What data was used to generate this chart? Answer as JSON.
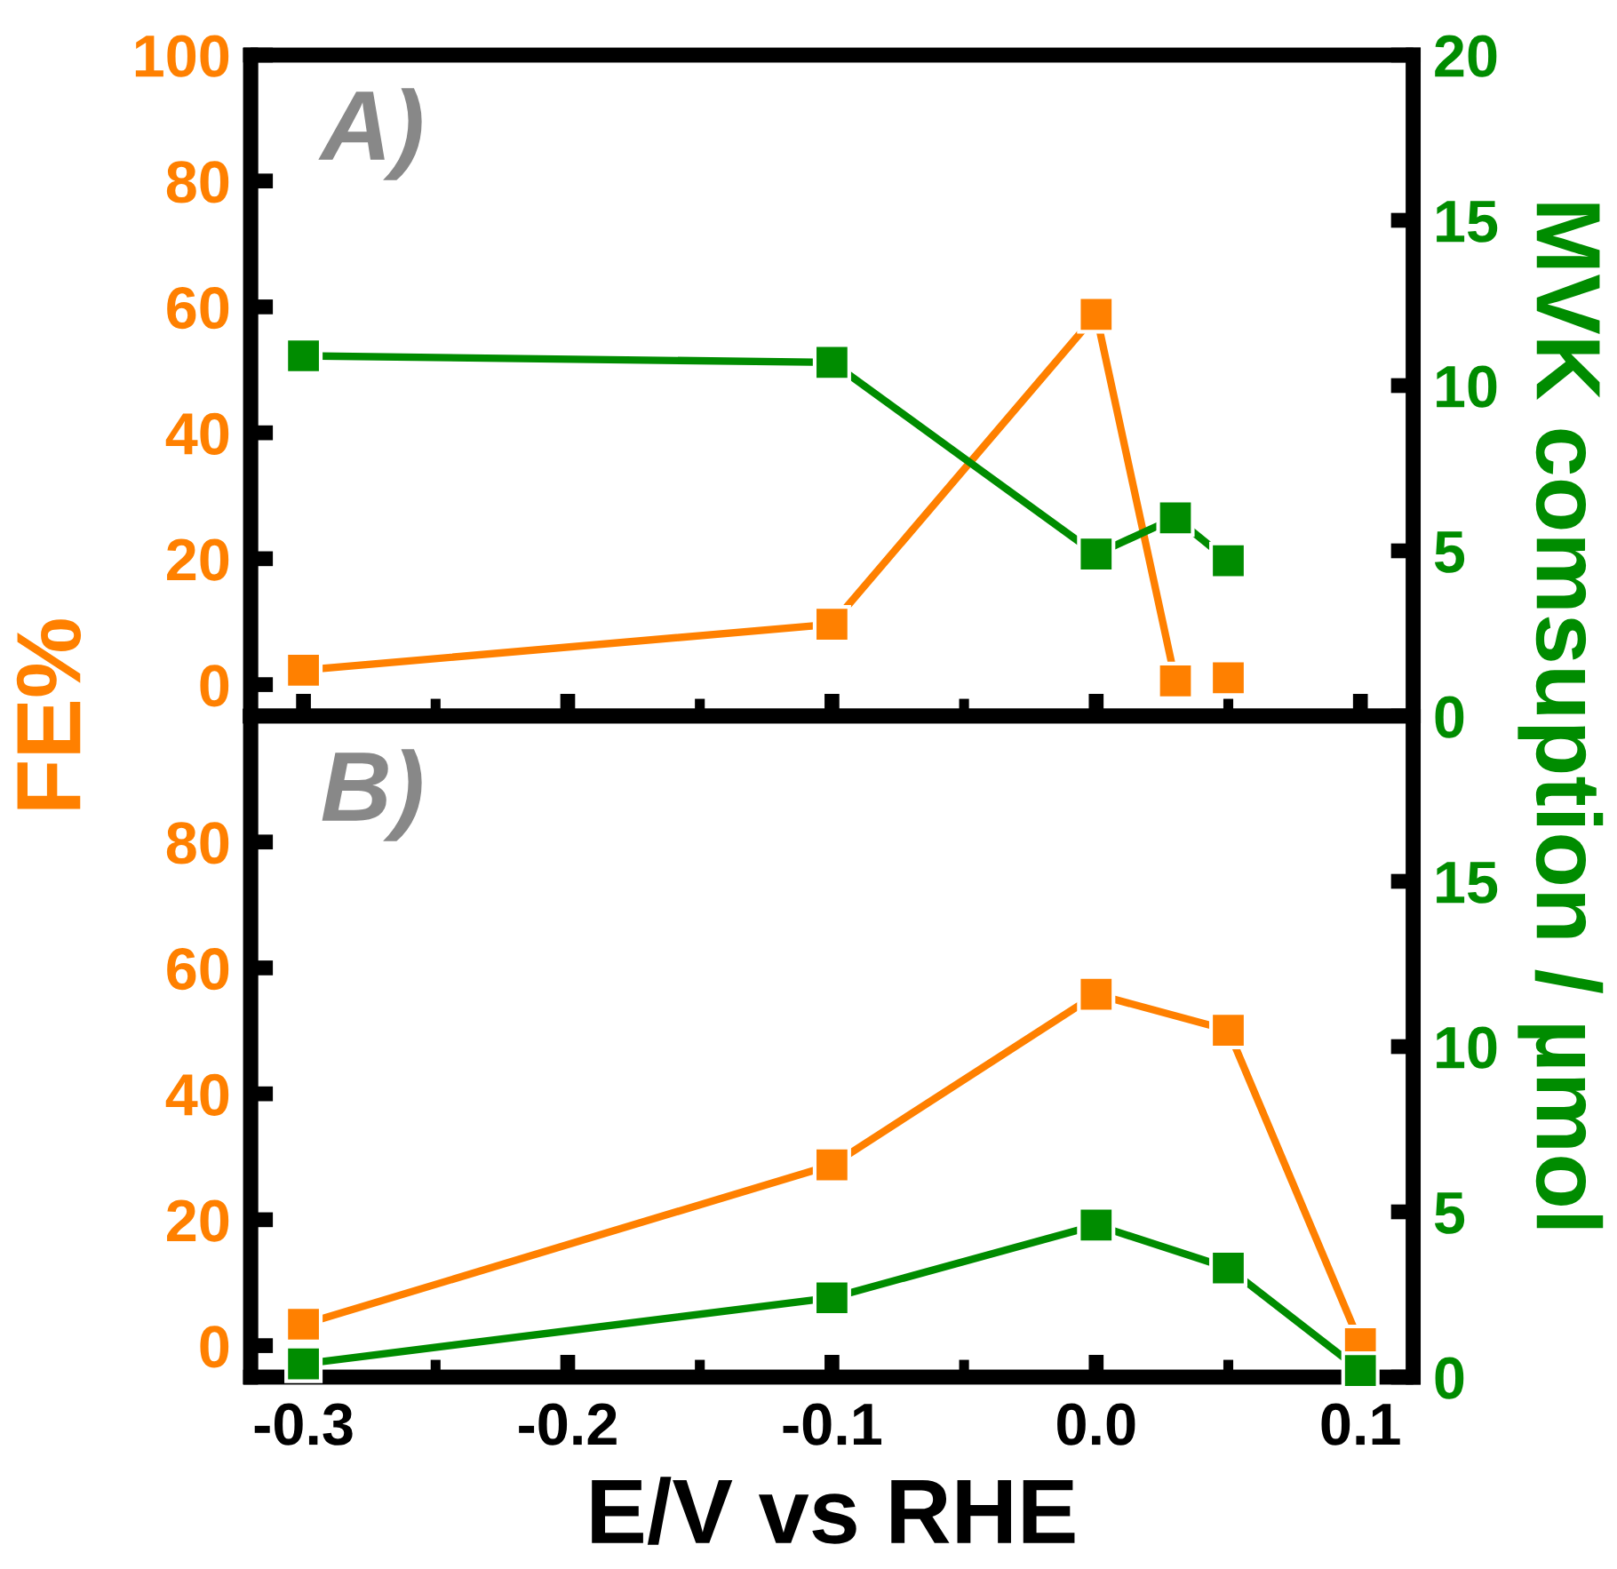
{
  "chart_data": [
    {
      "type": "line",
      "marker": "square",
      "annotations": [
        "A)"
      ],
      "ylabel": "FE%",
      "y2label": "MVK comsuption / µmol",
      "tick_labels": "y",
      "xlim": [
        -0.32,
        0.12
      ],
      "xticks": [
        {
          "value": -0.3,
          "label": null
        },
        {
          "value": -0.25,
          "label": null
        },
        {
          "value": -0.2,
          "label": null
        },
        {
          "value": -0.15,
          "label": null
        },
        {
          "value": -0.1,
          "label": null
        },
        {
          "value": -0.05,
          "label": null
        },
        {
          "value": 0,
          "label": null
        },
        {
          "value": 0.05,
          "label": null
        },
        {
          "value": 0.1,
          "label": null
        }
      ],
      "ylim": [
        -5,
        100
      ],
      "yticks": [
        0,
        20,
        40,
        60,
        80,
        100
      ],
      "y2lim": [
        0,
        20
      ],
      "y2ticks": [
        0,
        5,
        10,
        15,
        20
      ],
      "series": [
        {
          "color": "#ff8000",
          "x": [
            -0.3,
            -0.1,
            0,
            0.03
          ],
          "values": [
            2.3,
            9.6,
            58.8,
            0.6
          ]
        },
        {
          "type": "scatter",
          "color": "#ff8000",
          "x": [
            0.05
          ],
          "values": [
            1.1
          ]
        },
        {
          "color": "#008c00",
          "axis": "y2",
          "x": [
            -0.3,
            -0.1,
            0,
            0.03,
            0.05
          ],
          "values": [
            10.9,
            10.7,
            4.9,
            6.0,
            4.7
          ]
        }
      ]
    },
    {
      "type": "line",
      "marker": "square",
      "annotations": [
        "B)"
      ],
      "xlabel": "E/V vs RHE",
      "xlim": [
        -0.32,
        0.12
      ],
      "xticks": [
        -0.3,
        {
          "value": -0.25,
          "label": null
        },
        -0.2,
        {
          "value": -0.15,
          "label": null
        },
        -0.1,
        {
          "value": -0.05,
          "label": null
        },
        {
          "value": 0,
          "label": "0.0"
        },
        {
          "value": 0.05,
          "label": null
        },
        0.1
      ],
      "ylim": [
        -5,
        100
      ],
      "yticks": [
        0,
        20,
        40,
        60,
        80
      ],
      "y2lim": [
        0,
        20
      ],
      "y2ticks": [
        0,
        5,
        10,
        15
      ],
      "series": [
        {
          "color": "#ff8000",
          "x": [
            -0.3,
            -0.1,
            0,
            0.05,
            0.1
          ],
          "values": [
            3.4,
            28.7,
            55.8,
            50.1,
            0.3
          ]
        },
        {
          "color": "#008c00",
          "axis": "y2",
          "x": [
            -0.3,
            -0.1,
            0,
            0.05,
            0.1
          ],
          "values": [
            0.4,
            2.4,
            4.6,
            3.3,
            0.2
          ]
        }
      ]
    }
  ]
}
